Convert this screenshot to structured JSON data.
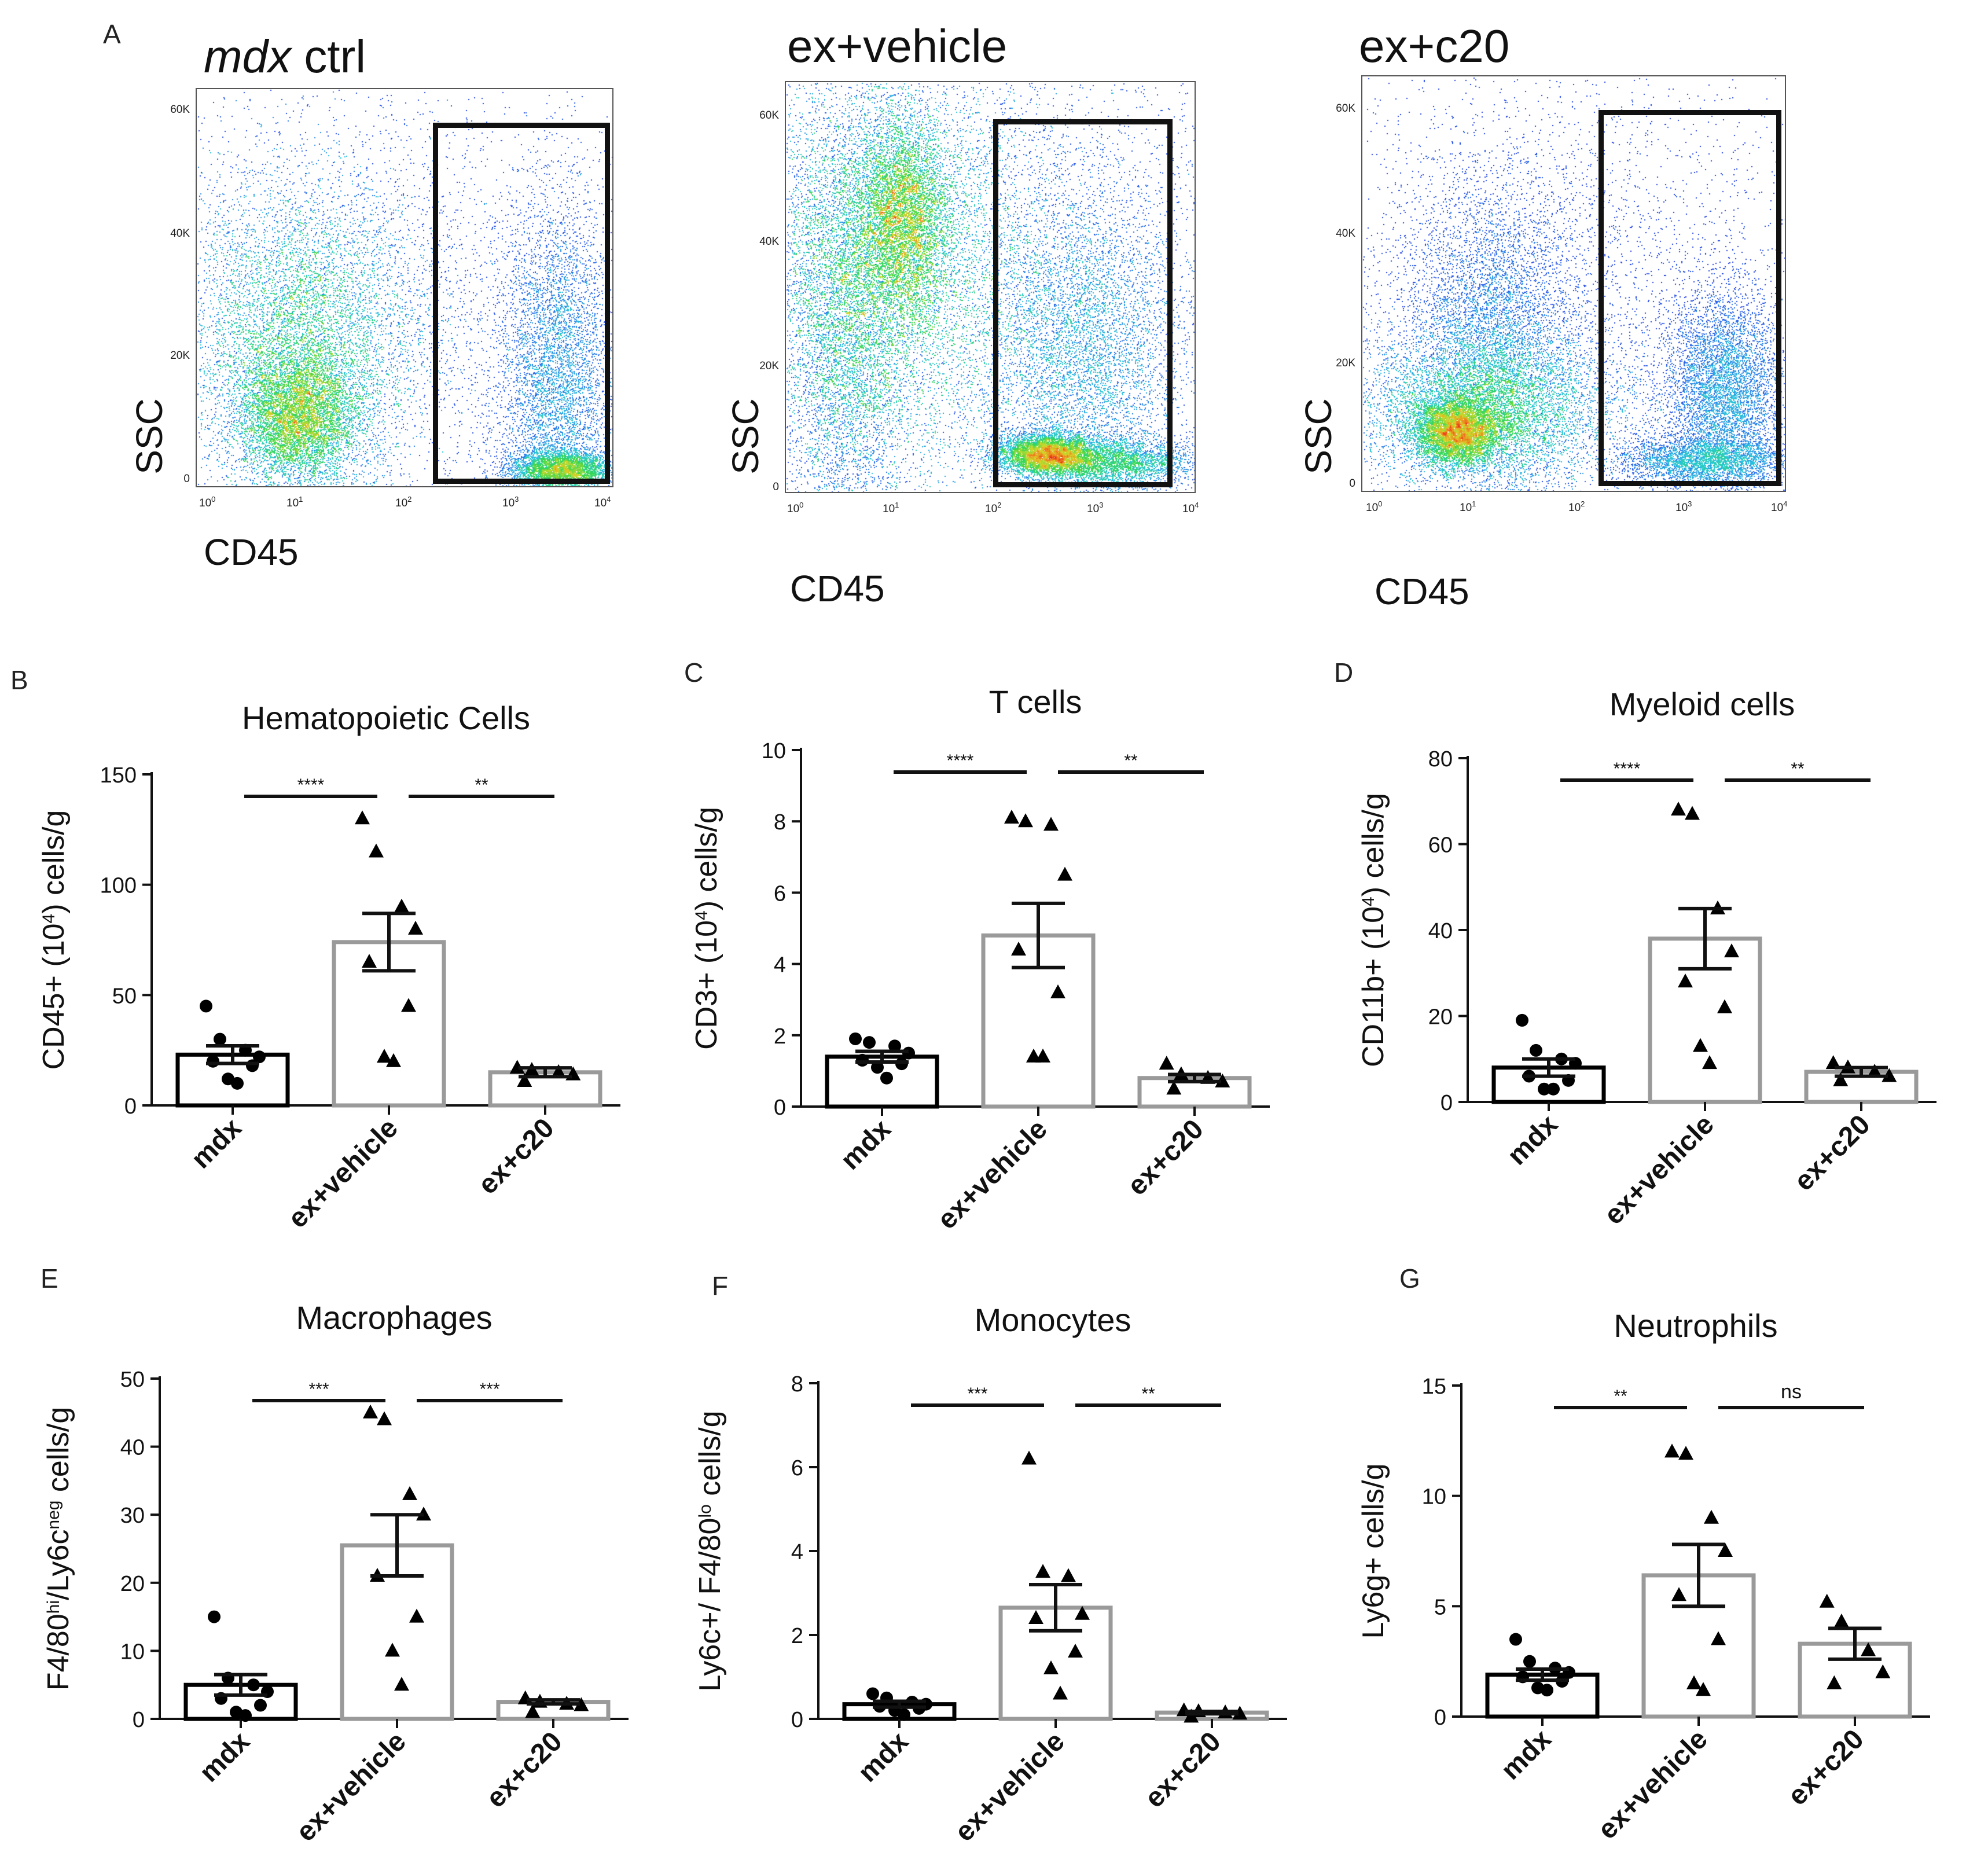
{
  "figure": {
    "panel_letters": [
      "A",
      "B",
      "C",
      "D",
      "E",
      "F",
      "G"
    ]
  },
  "flow": {
    "x_label": "CD45",
    "y_label": "SSC",
    "y_ticks": [
      "0",
      "20K",
      "40K",
      "60K"
    ],
    "x_ticks": [
      {
        "base": "10",
        "exp": "0"
      },
      {
        "base": "10",
        "exp": "1"
      },
      {
        "base": "10",
        "exp": "2"
      },
      {
        "base": "10",
        "exp": "3"
      },
      {
        "base": "10",
        "exp": "4"
      }
    ],
    "panels": [
      {
        "title_italic": "mdx",
        "title_rest": " ctrl"
      },
      {
        "title_italic": "",
        "title_rest": "ex+vehicle"
      },
      {
        "title_italic": "",
        "title_rest": "ex+c20"
      }
    ]
  },
  "colors": {
    "dark_bar": "#000000",
    "gray_bar": "#9a9a9a",
    "point": "#000000"
  },
  "chart_data": [
    {
      "type": "bar",
      "panel": "B",
      "title": "Hematopoietic  Cells",
      "ylabel": "CD45+ (10^4) cells/g",
      "ylabel_parts": [
        {
          "t": "CD45+ (10"
        },
        {
          "t": "4",
          "sup": true
        },
        {
          "t": ") cells/g"
        }
      ],
      "ylim": [
        0,
        150
      ],
      "yticks": [
        0,
        50,
        100,
        150
      ],
      "yticklabels": [
        "0",
        "50",
        "100",
        "150"
      ],
      "categories": [
        "mdx",
        "ex+vehicle",
        "ex+c20"
      ],
      "means": [
        23,
        74,
        15
      ],
      "sem": [
        4,
        13,
        2
      ],
      "points": [
        [
          45,
          30,
          25,
          22,
          20,
          18,
          12,
          10
        ],
        [
          130,
          115,
          90,
          80,
          65,
          45,
          22,
          20
        ],
        [
          17,
          16,
          15,
          14,
          11
        ]
      ],
      "markers": [
        "circle",
        "triangle",
        "triangle"
      ],
      "significance": [
        {
          "from": 0,
          "to": 1,
          "label": "****"
        },
        {
          "from": 1,
          "to": 2,
          "label": "**"
        }
      ]
    },
    {
      "type": "bar",
      "panel": "C",
      "title": "T cells",
      "ylabel": "CD3+ (10^4) cells/g",
      "ylabel_parts": [
        {
          "t": "CD3+ (10"
        },
        {
          "t": "4",
          "sup": true
        },
        {
          "t": ") cells/g"
        }
      ],
      "ylim": [
        0,
        10
      ],
      "yticks": [
        0,
        2,
        4,
        6,
        8,
        10
      ],
      "yticklabels": [
        "0",
        "2",
        "4",
        "6",
        "8",
        "10"
      ],
      "categories": [
        "mdx",
        "ex+vehicle",
        "ex+c20"
      ],
      "means": [
        1.4,
        4.8,
        0.8
      ],
      "sem": [
        0.15,
        0.9,
        0.1
      ],
      "points": [
        [
          1.9,
          1.8,
          1.7,
          1.5,
          1.3,
          1.2,
          1.1,
          0.8
        ],
        [
          8.1,
          8.0,
          7.9,
          6.5,
          4.4,
          3.2,
          1.4,
          1.4
        ],
        [
          1.2,
          0.9,
          0.8,
          0.7,
          0.5
        ]
      ],
      "markers": [
        "circle",
        "triangle",
        "triangle"
      ],
      "significance": [
        {
          "from": 0,
          "to": 1,
          "label": "****"
        },
        {
          "from": 1,
          "to": 2,
          "label": "**"
        }
      ]
    },
    {
      "type": "bar",
      "panel": "D",
      "title": "Myeloid cells",
      "ylabel": "CD11b+ (10^4) cells/g",
      "ylabel_parts": [
        {
          "t": "CD11b+ (10"
        },
        {
          "t": "4",
          "sup": true
        },
        {
          "t": ") cells/g"
        }
      ],
      "ylim": [
        0,
        80
      ],
      "yticks": [
        0,
        20,
        40,
        60,
        80
      ],
      "yticklabels": [
        "0",
        "20",
        "40",
        "60",
        "80"
      ],
      "categories": [
        "mdx",
        "ex+vehicle",
        "ex+c20"
      ],
      "means": [
        8,
        38,
        7
      ],
      "sem": [
        2,
        7,
        1
      ],
      "points": [
        [
          19,
          12,
          10,
          9,
          6,
          5,
          3,
          3
        ],
        [
          68,
          67,
          45,
          35,
          28,
          22,
          13,
          9
        ],
        [
          9,
          8,
          7,
          6,
          5
        ]
      ],
      "markers": [
        "circle",
        "triangle",
        "triangle"
      ],
      "significance": [
        {
          "from": 0,
          "to": 1,
          "label": "****"
        },
        {
          "from": 1,
          "to": 2,
          "label": "**"
        }
      ]
    },
    {
      "type": "bar",
      "panel": "E",
      "title": "Macrophages",
      "ylabel": "F4/80hi/Ly6cneg cells/g",
      "ylabel_parts": [
        {
          "t": "F4/80"
        },
        {
          "t": "hi",
          "sup": true
        },
        {
          "t": "/Ly6c"
        },
        {
          "t": "neg",
          "sup": true
        },
        {
          "t": " cells/g"
        }
      ],
      "ylim": [
        0,
        50
      ],
      "yticks": [
        0,
        10,
        20,
        30,
        40,
        50
      ],
      "yticklabels": [
        "0",
        "10",
        "20",
        "30",
        "40",
        "50"
      ],
      "categories": [
        "mdx",
        "ex+vehicle",
        "ex+c20"
      ],
      "means": [
        5,
        25.5,
        2.5
      ],
      "sem": [
        1.5,
        4.5,
        0.3
      ],
      "points": [
        [
          15,
          6,
          5,
          4,
          3,
          2,
          1,
          0.5
        ],
        [
          45,
          44,
          33,
          30,
          21,
          15,
          10,
          5
        ],
        [
          3,
          2.5,
          2.2,
          2,
          1
        ]
      ],
      "markers": [
        "circle",
        "triangle",
        "triangle"
      ],
      "significance": [
        {
          "from": 0,
          "to": 1,
          "label": "***"
        },
        {
          "from": 1,
          "to": 2,
          "label": "***"
        }
      ]
    },
    {
      "type": "bar",
      "panel": "F",
      "title": "Monocytes",
      "ylabel": "Ly6c+/ F4/80lo cells/g",
      "ylabel_parts": [
        {
          "t": "Ly6c+/ F4/80"
        },
        {
          "t": "lo",
          "sup": true
        },
        {
          "t": " cells/g"
        }
      ],
      "ylim": [
        0,
        8
      ],
      "yticks": [
        0,
        2,
        4,
        6,
        8
      ],
      "yticklabels": [
        "0",
        "2",
        "4",
        "6",
        "8"
      ],
      "categories": [
        "mdx",
        "ex+vehicle",
        "ex+c20"
      ],
      "means": [
        0.35,
        2.65,
        0.15
      ],
      "sem": [
        0.07,
        0.55,
        0.03
      ],
      "points": [
        [
          0.6,
          0.5,
          0.4,
          0.35,
          0.3,
          0.25,
          0.2,
          0.1
        ],
        [
          6.2,
          3.5,
          3.4,
          2.5,
          2.4,
          1.6,
          1.2,
          0.6
        ],
        [
          0.2,
          0.18,
          0.15,
          0.12,
          0.05
        ]
      ],
      "markers": [
        "circle",
        "triangle",
        "triangle"
      ],
      "significance": [
        {
          "from": 0,
          "to": 1,
          "label": "***"
        },
        {
          "from": 1,
          "to": 2,
          "label": "**"
        }
      ]
    },
    {
      "type": "bar",
      "panel": "G",
      "title": "Neutrophils",
      "ylabel": "Ly6g+ cells/g",
      "ylabel_parts": [
        {
          "t": "Ly6g+ cells/g"
        }
      ],
      "ylim": [
        0,
        15
      ],
      "yticks": [
        0,
        5,
        10,
        15
      ],
      "yticklabels": [
        "0",
        "5",
        "10",
        "15"
      ],
      "categories": [
        "mdx",
        "ex+vehicle",
        "ex+c20"
      ],
      "means": [
        1.9,
        6.4,
        3.3
      ],
      "sem": [
        0.25,
        1.4,
        0.7
      ],
      "points": [
        [
          3.5,
          2.5,
          2.2,
          2.0,
          1.8,
          1.6,
          1.3,
          1.2
        ],
        [
          12,
          11.9,
          9,
          7.5,
          5.5,
          3.5,
          1.5,
          1.2
        ],
        [
          5.2,
          4.3,
          3.0,
          2.0,
          1.5
        ]
      ],
      "markers": [
        "circle",
        "triangle",
        "triangle"
      ],
      "significance": [
        {
          "from": 0,
          "to": 1,
          "label": "**"
        },
        {
          "from": 1,
          "to": 2,
          "label": "ns"
        }
      ]
    }
  ]
}
